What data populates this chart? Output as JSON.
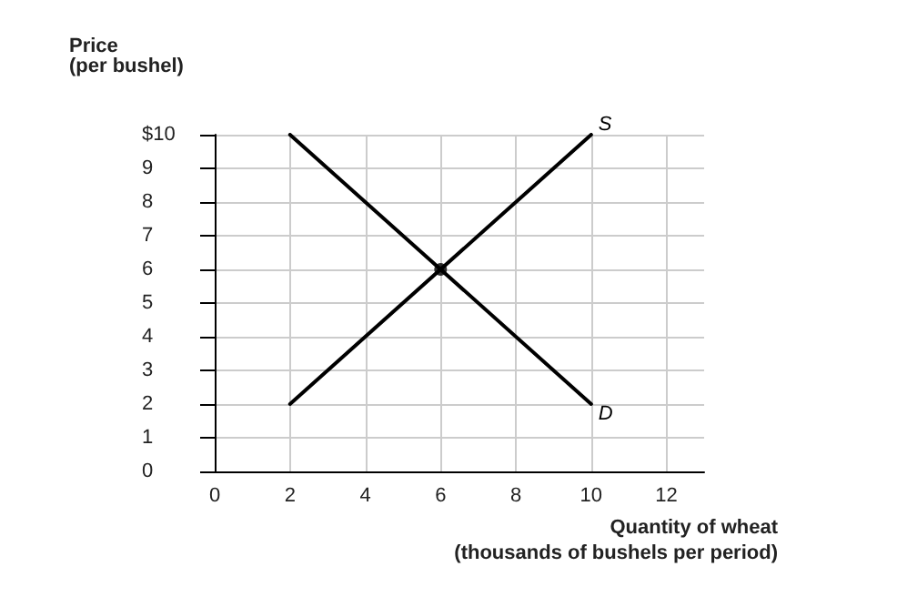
{
  "chart_data": {
    "type": "line",
    "xlabel": "Quantity of wheat\n(thousands of bushels per period)",
    "ylabel": "Price\n(per bushel)",
    "xlim": [
      0,
      13
    ],
    "xticks": [
      0,
      2,
      4,
      6,
      8,
      10,
      12
    ],
    "ylim": [
      0,
      10
    ],
    "yticks": [
      0,
      1,
      2,
      3,
      4,
      5,
      6,
      7,
      8,
      9,
      {
        "value": 10,
        "label": "$10"
      }
    ],
    "grid": true,
    "marker": "none",
    "line_style": "solid",
    "series": [
      {
        "name": "S",
        "color": "#000000",
        "x": [
          2,
          10
        ],
        "values": [
          2,
          10
        ]
      },
      {
        "name": "D",
        "color": "#000000",
        "x": [
          2,
          10
        ],
        "values": [
          10,
          2
        ]
      },
      {
        "type": "scatter",
        "color": "#000000",
        "x": [
          6
        ],
        "values": [
          6
        ],
        "marker": "circle"
      }
    ]
  }
}
